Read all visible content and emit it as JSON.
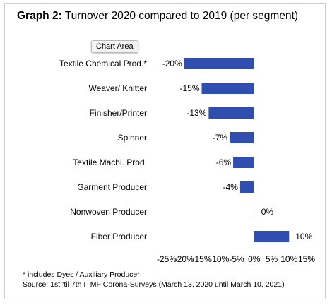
{
  "title": {
    "lead": "Graph 2:",
    "text": "Turnover 2020 compared to 2019 (per segment)"
  },
  "tooltip": "Chart Area",
  "footnotes": {
    "note": "* includes Dyes / Auxiliary Producer",
    "source": "Source: 1st ‘til 7th ITMF Corona-Surveys (March 13, 2020 until March 10, 2021)"
  },
  "chart_data": {
    "type": "bar",
    "orientation": "horizontal",
    "categories": [
      "Textile Chemical Prod.*",
      "Weaver/ Knitter",
      "Finisher/Printer",
      "Spinner",
      "Textile Machi. Prod.",
      "Garment Producer",
      "Nonwoven Producer",
      "Fiber Producer"
    ],
    "values": [
      -20,
      -15,
      -13,
      -7,
      -6,
      -4,
      0,
      10
    ],
    "data_labels": [
      "-20%",
      "-15%",
      "-13%",
      "-7%",
      "-6%",
      "-4%",
      "0%",
      "10%"
    ],
    "xlim": [
      -25,
      15
    ],
    "x_ticks": [
      -25,
      -20,
      -15,
      -10,
      -5,
      0,
      5,
      10,
      15
    ],
    "x_tick_labels": [
      "-25%",
      "-20%",
      "-15%",
      "-10%",
      "-5%",
      "0%",
      "5%",
      "10%",
      "15%"
    ],
    "grid": false,
    "legend": "none",
    "bar_color": "#2f4eb0"
  }
}
